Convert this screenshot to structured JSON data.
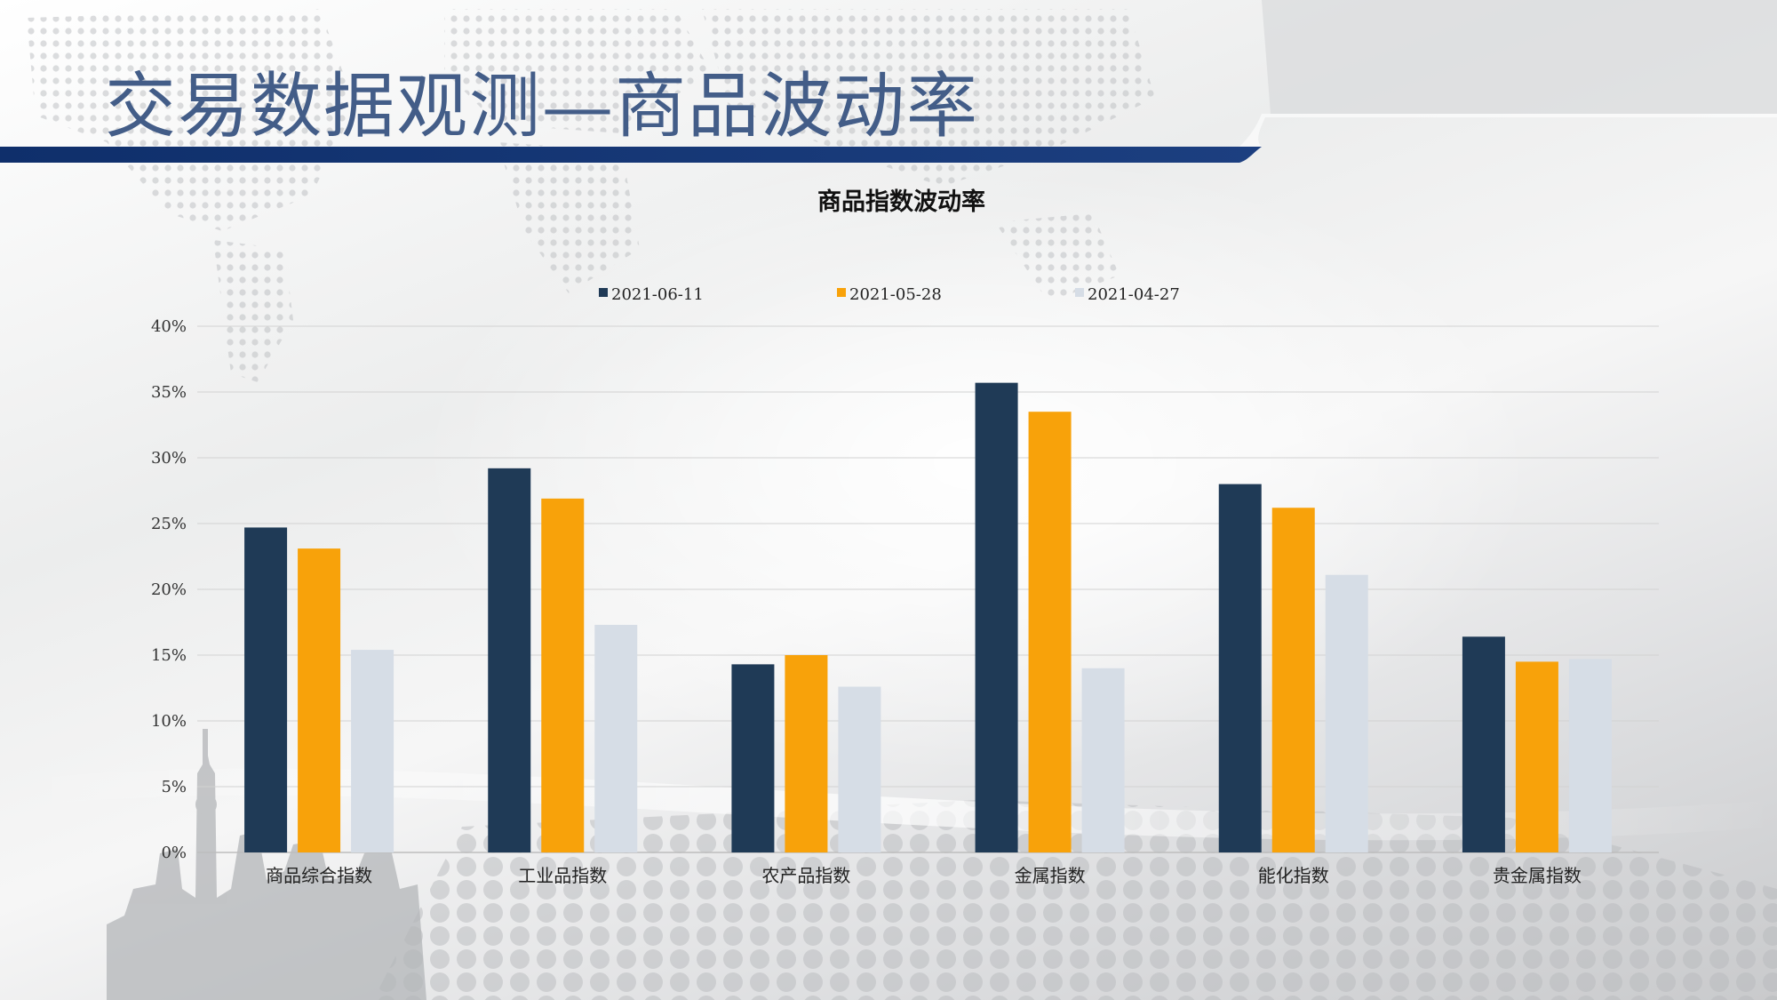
{
  "slide": {
    "title": "交易数据观测—商品波动率"
  },
  "colors": {
    "title_text": "#435d88",
    "header_band": "#0f2f6b",
    "series": [
      "#1f3a56",
      "#f8a20a",
      "#d6dde6"
    ]
  },
  "chart_data": {
    "type": "bar",
    "title": "商品指数波动率",
    "categories": [
      "商品综合指数",
      "工业品指数",
      "农产品指数",
      "金属指数",
      "能化指数",
      "贵金属指数"
    ],
    "series": [
      {
        "name": "2021-06-11",
        "values": [
          24.7,
          29.2,
          14.3,
          35.7,
          28.0,
          16.4
        ]
      },
      {
        "name": "2021-05-28",
        "values": [
          23.1,
          26.9,
          15.0,
          33.5,
          26.2,
          14.5
        ]
      },
      {
        "name": "2021-04-27",
        "values": [
          15.4,
          17.3,
          12.6,
          14.0,
          21.1,
          14.7
        ]
      }
    ],
    "y_ticks": [
      "0%",
      "5%",
      "10%",
      "15%",
      "20%",
      "25%",
      "30%",
      "35%",
      "40%"
    ],
    "ylim": [
      0,
      40
    ],
    "y_unit": "%",
    "grid": true,
    "legend_position": "top"
  }
}
